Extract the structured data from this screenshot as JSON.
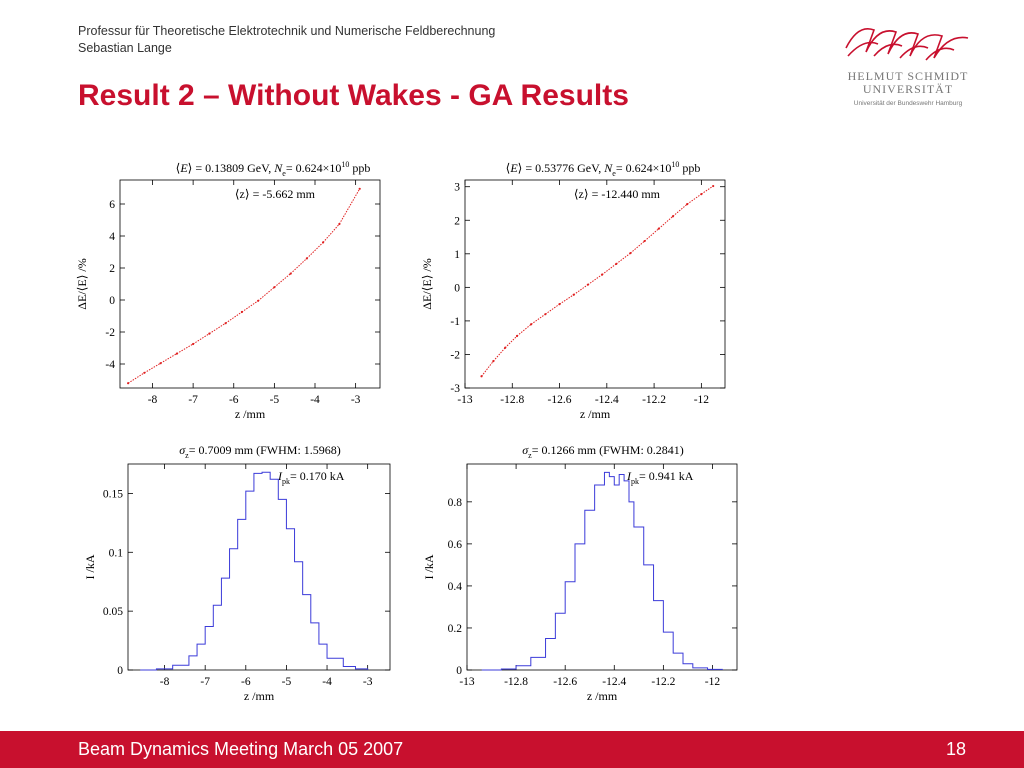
{
  "header": {
    "line1": "Professur für Theoretische Elektrotechnik und Numerische Feldberechnung",
    "line2": "Sebastian Lange"
  },
  "title": "Result 2 – Without Wakes - GA Results",
  "logo": {
    "line1": "HELMUT SCHMIDT",
    "line2": "UNIVERSITÄT",
    "line3": "Universität der Bundeswehr Hamburg",
    "color": "#c8102e"
  },
  "footer": {
    "left": "Beam Dynamics Meeting March 05 2007",
    "right": "18",
    "color": "#c8102e"
  },
  "chart_data": [
    {
      "type": "scatter",
      "color": "#e02020",
      "title_parts": {
        "E_lbl": "E",
        "E_val": "= 0.13809 GeV,",
        "N_lbl": "N",
        "N_sub": "e",
        "N_val": "= 0.624×10",
        "N_exp": "10",
        "N_unit": "ppb"
      },
      "annotation": "⟨z⟩ = -5.662 mm",
      "xlabel": "z /mm",
      "ylabel": "ΔE/⟨E⟩ /%",
      "xlim": [
        -8.8,
        -2.4
      ],
      "ylim": [
        -5.5,
        7.5
      ],
      "xticks": [
        -8,
        -7,
        -6,
        -5,
        -4,
        -3
      ],
      "yticks": [
        -4,
        -2,
        0,
        2,
        4,
        6
      ],
      "x": [
        -8.6,
        -8.2,
        -7.8,
        -7.4,
        -7.0,
        -6.6,
        -6.2,
        -5.8,
        -5.4,
        -5.0,
        -4.6,
        -4.2,
        -3.8,
        -3.4,
        -2.9
      ],
      "y": [
        -5.2,
        -4.55,
        -3.95,
        -3.35,
        -2.75,
        -2.1,
        -1.45,
        -0.75,
        -0.05,
        0.8,
        1.65,
        2.6,
        3.6,
        4.75,
        6.95
      ]
    },
    {
      "type": "scatter",
      "color": "#e02020",
      "title_parts": {
        "E_lbl": "E",
        "E_val": "= 0.53776 GeV,",
        "N_lbl": "N",
        "N_sub": "e",
        "N_val": "= 0.624×10",
        "N_exp": "10",
        "N_unit": "ppb"
      },
      "annotation": "⟨z⟩ = -12.440 mm",
      "xlabel": "z /mm",
      "ylabel": "ΔE/⟨E⟩ /%",
      "xlim": [
        -13.0,
        -11.9
      ],
      "ylim": [
        -3.0,
        3.2
      ],
      "xticks": [
        -13,
        -12.8,
        -12.6,
        -12.4,
        -12.2,
        -12
      ],
      "xticklabels": [
        "-13",
        "-12.8",
        "-12.6",
        "-12.4",
        "-12.2",
        "-12"
      ],
      "yticks": [
        -3,
        -2,
        -1,
        0,
        1,
        2,
        3
      ],
      "x": [
        -12.93,
        -12.88,
        -12.83,
        -12.78,
        -12.72,
        -12.66,
        -12.6,
        -12.54,
        -12.48,
        -12.42,
        -12.36,
        -12.3,
        -12.24,
        -12.18,
        -12.12,
        -12.06,
        -12.0,
        -11.95
      ],
      "y": [
        -2.65,
        -2.2,
        -1.8,
        -1.45,
        -1.1,
        -0.8,
        -0.5,
        -0.22,
        0.08,
        0.38,
        0.7,
        1.02,
        1.38,
        1.75,
        2.12,
        2.48,
        2.78,
        3.02
      ]
    },
    {
      "type": "line",
      "step": true,
      "color": "#3b3bd9",
      "title_parts": {
        "sigma_val": "= 0.7009 mm (FWHM:  1.5968)"
      },
      "annotation_value": "= 0.170 kA",
      "xlabel": "z /mm",
      "ylabel": "I /kA",
      "xlim": [
        -8.9,
        -2.45
      ],
      "ylim": [
        0,
        0.175
      ],
      "xticks": [
        -8,
        -7,
        -6,
        -5,
        -4,
        -3
      ],
      "yticks": [
        0,
        0.05,
        0.1,
        0.15
      ],
      "yticklabels": [
        "0",
        "0.05",
        "0.1",
        "0.15"
      ],
      "x": [
        -8.6,
        -8.2,
        -7.8,
        -7.4,
        -7.2,
        -7.0,
        -6.8,
        -6.6,
        -6.4,
        -6.2,
        -6.0,
        -5.8,
        -5.6,
        -5.4,
        -5.2,
        -5.0,
        -4.8,
        -4.6,
        -4.4,
        -4.2,
        -4.0,
        -3.6,
        -3.3,
        -3.0
      ],
      "y": [
        0.0,
        0.001,
        0.004,
        0.012,
        0.022,
        0.037,
        0.055,
        0.078,
        0.103,
        0.128,
        0.152,
        0.167,
        0.168,
        0.162,
        0.145,
        0.12,
        0.092,
        0.064,
        0.04,
        0.022,
        0.01,
        0.003,
        0.001,
        0.0
      ]
    },
    {
      "type": "line",
      "step": true,
      "color": "#3b3bd9",
      "title_parts": {
        "sigma_val": "= 0.1266 mm (FWHM:  0.2841)"
      },
      "annotation_value": "= 0.941 kA",
      "xlabel": "z /mm",
      "ylabel": "I /kA",
      "xlim": [
        -13.0,
        -11.9
      ],
      "ylim": [
        0,
        0.98
      ],
      "xticks": [
        -13,
        -12.8,
        -12.6,
        -12.4,
        -12.2,
        -12
      ],
      "xticklabels": [
        "-13",
        "-12.8",
        "-12.6",
        "-12.4",
        "-12.2",
        "-12"
      ],
      "yticks": [
        0,
        0.2,
        0.4,
        0.6,
        0.8
      ],
      "yticklabels": [
        "0",
        "0.2",
        "0.4",
        "0.6",
        "0.8"
      ],
      "x": [
        -12.94,
        -12.86,
        -12.8,
        -12.74,
        -12.68,
        -12.64,
        -12.6,
        -12.56,
        -12.52,
        -12.48,
        -12.44,
        -12.42,
        -12.4,
        -12.38,
        -12.36,
        -12.34,
        -12.32,
        -12.28,
        -12.24,
        -12.2,
        -12.16,
        -12.12,
        -12.08,
        -12.02,
        -11.96
      ],
      "y": [
        0.0,
        0.005,
        0.02,
        0.06,
        0.15,
        0.27,
        0.42,
        0.6,
        0.76,
        0.88,
        0.94,
        0.92,
        0.88,
        0.93,
        0.9,
        0.8,
        0.68,
        0.5,
        0.33,
        0.18,
        0.08,
        0.03,
        0.01,
        0.003,
        0.0
      ]
    }
  ]
}
